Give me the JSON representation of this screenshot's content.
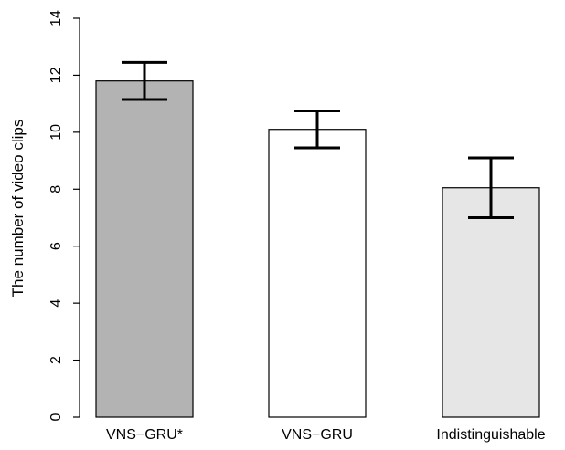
{
  "chart_data": {
    "type": "bar",
    "title": "",
    "xlabel": "",
    "ylabel": "The number of video clips",
    "ylim": [
      0,
      14
    ],
    "yticks": [
      0,
      2,
      4,
      6,
      8,
      10,
      12,
      14
    ],
    "grid": false,
    "legend": "none",
    "categories": [
      "VNS−GRU*",
      "VNS−GRU",
      "Indistinguishable"
    ],
    "values": [
      11.8,
      10.1,
      8.05
    ],
    "error_low": [
      11.15,
      9.45,
      7.0
    ],
    "error_high": [
      12.45,
      10.75,
      9.1
    ],
    "bar_colors": [
      "#b3b3b3",
      "#ffffff",
      "#e6e6e6"
    ]
  }
}
